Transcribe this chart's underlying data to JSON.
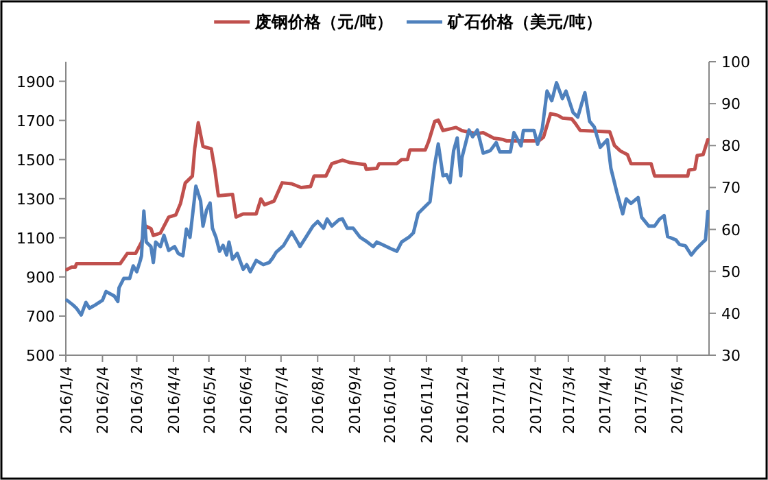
{
  "chart_data": {
    "type": "line",
    "legend": "top",
    "grid": false,
    "marker": "none",
    "line_style": "solid",
    "xlim": [
      "2016-01-04",
      "2017-07-01"
    ],
    "xticks": [
      {
        "value": "2016-01-04",
        "label": "2016/1/4"
      },
      {
        "value": "2016-02-04",
        "label": "2016/2/4"
      },
      {
        "value": "2016-03-04",
        "label": "2016/3/4"
      },
      {
        "value": "2016-04-04",
        "label": "2016/4/4"
      },
      {
        "value": "2016-05-04",
        "label": "2016/5/4"
      },
      {
        "value": "2016-06-04",
        "label": "2016/6/4"
      },
      {
        "value": "2016-07-04",
        "label": "2016/7/4"
      },
      {
        "value": "2016-08-04",
        "label": "2016/8/4"
      },
      {
        "value": "2016-09-04",
        "label": "2016/9/4"
      },
      {
        "value": "2016-10-04",
        "label": "2016/10/4"
      },
      {
        "value": "2016-11-04",
        "label": "2016/11/4"
      },
      {
        "value": "2016-12-04",
        "label": "2016/12/4"
      },
      {
        "value": "2017-01-04",
        "label": "2017/1/4"
      },
      {
        "value": "2017-02-04",
        "label": "2017/2/4"
      },
      {
        "value": "2017-03-04",
        "label": "2017/3/4"
      },
      {
        "value": "2017-04-04",
        "label": "2017/4/4"
      },
      {
        "value": "2017-05-04",
        "label": "2017/5/4"
      },
      {
        "value": "2017-06-04",
        "label": "2017/6/4"
      }
    ],
    "ylim": [
      500,
      2000
    ],
    "yticks": [
      500,
      700,
      900,
      1100,
      1300,
      1500,
      1700,
      1900
    ],
    "y2lim": [
      30,
      100
    ],
    "y2ticks": [
      30,
      40,
      50,
      60,
      70,
      80,
      90,
      100
    ],
    "series": [
      {
        "name": "废钢价格（元/吨）",
        "color": "#c0504d",
        "x": [
          "2016-01-05",
          "2016-01-09",
          "2016-01-12",
          "2016-01-13",
          "2016-02-19",
          "2016-02-25",
          "2016-03-03",
          "2016-03-08",
          "2016-03-12",
          "2016-03-16",
          "2016-03-18",
          "2016-03-24",
          "2016-03-27",
          "2016-03-31",
          "2016-04-06",
          "2016-04-10",
          "2016-04-14",
          "2016-04-20",
          "2016-04-22",
          "2016-04-25",
          "2016-04-29",
          "2016-05-06",
          "2016-05-09",
          "2016-05-12",
          "2016-05-24",
          "2016-05-27",
          "2016-06-02",
          "2016-06-13",
          "2016-06-17",
          "2016-06-20",
          "2016-06-28",
          "2016-07-05",
          "2016-07-13",
          "2016-07-21",
          "2016-07-29",
          "2016-08-01",
          "2016-08-11",
          "2016-08-16",
          "2016-08-25",
          "2016-08-31",
          "2016-09-13",
          "2016-09-14",
          "2016-09-23",
          "2016-09-25",
          "2016-10-10",
          "2016-10-14",
          "2016-10-19",
          "2016-10-21",
          "2016-11-03",
          "2016-11-06",
          "2016-11-11",
          "2016-11-14",
          "2016-11-18",
          "2016-11-29",
          "2016-12-04",
          "2016-12-16",
          "2016-12-22",
          "2016-12-31",
          "2017-01-08",
          "2017-01-11",
          "2017-02-07",
          "2017-02-11",
          "2017-02-17",
          "2017-02-23",
          "2017-02-27",
          "2017-03-07",
          "2017-03-10",
          "2017-03-14",
          "2017-04-08",
          "2017-04-12",
          "2017-04-17",
          "2017-04-23",
          "2017-04-26",
          "2017-05-13",
          "2017-05-16",
          "2017-06-13",
          "2017-06-14",
          "2017-06-19",
          "2017-06-21",
          "2017-06-26",
          "2017-06-30"
        ],
        "values": [
          938,
          950,
          950,
          968,
          968,
          1020,
          1020,
          1078,
          1159,
          1147,
          1112,
          1124,
          1159,
          1206,
          1217,
          1276,
          1380,
          1415,
          1555,
          1688,
          1567,
          1555,
          1450,
          1315,
          1322,
          1206,
          1222,
          1222,
          1299,
          1269,
          1287,
          1381,
          1376,
          1357,
          1362,
          1416,
          1416,
          1479,
          1497,
          1485,
          1474,
          1451,
          1455,
          1479,
          1479,
          1500,
          1500,
          1549,
          1549,
          1595,
          1695,
          1702,
          1648,
          1664,
          1648,
          1632,
          1637,
          1609,
          1602,
          1595,
          1595,
          1614,
          1735,
          1726,
          1712,
          1707,
          1684,
          1649,
          1642,
          1572,
          1544,
          1525,
          1479,
          1479,
          1416,
          1416,
          1446,
          1451,
          1521,
          1525,
          1602
        ]
      },
      {
        "name": "矿石价格（美元/吨）",
        "color": "#4f81bd",
        "axis": "y2",
        "x": [
          "2016-01-05",
          "2016-01-10",
          "2016-01-13",
          "2016-01-17",
          "2016-01-21",
          "2016-01-24",
          "2016-01-29",
          "2016-02-04",
          "2016-02-07",
          "2016-02-14",
          "2016-02-17",
          "2016-02-18",
          "2016-02-22",
          "2016-02-27",
          "2016-03-01",
          "2016-03-04",
          "2016-03-07",
          "2016-03-08",
          "2016-03-10",
          "2016-03-12",
          "2016-03-16",
          "2016-03-18",
          "2016-03-20",
          "2016-03-24",
          "2016-03-27",
          "2016-03-31",
          "2016-04-05",
          "2016-04-08",
          "2016-04-12",
          "2016-04-15",
          "2016-04-18",
          "2016-04-23",
          "2016-04-27",
          "2016-04-29",
          "2016-05-02",
          "2016-05-05",
          "2016-05-07",
          "2016-05-10",
          "2016-05-13",
          "2016-05-16",
          "2016-05-19",
          "2016-05-21",
          "2016-05-24",
          "2016-05-28",
          "2016-06-02",
          "2016-06-05",
          "2016-06-08",
          "2016-06-13",
          "2016-06-19",
          "2016-06-24",
          "2016-06-27",
          "2016-06-30",
          "2016-07-06",
          "2016-07-13",
          "2016-07-18",
          "2016-07-20",
          "2016-07-25",
          "2016-07-31",
          "2016-08-04",
          "2016-08-09",
          "2016-08-12",
          "2016-08-16",
          "2016-08-22",
          "2016-08-25",
          "2016-08-29",
          "2016-09-03",
          "2016-09-09",
          "2016-09-15",
          "2016-09-20",
          "2016-09-23",
          "2016-09-29",
          "2016-10-05",
          "2016-10-10",
          "2016-10-14",
          "2016-10-20",
          "2016-10-24",
          "2016-10-28",
          "2016-11-03",
          "2016-11-07",
          "2016-11-11",
          "2016-11-14",
          "2016-11-18",
          "2016-11-21",
          "2016-11-24",
          "2016-11-27",
          "2016-11-30",
          "2016-12-03",
          "2016-12-04",
          "2016-12-10",
          "2016-12-13",
          "2016-12-17",
          "2016-12-22",
          "2016-12-28",
          "2017-01-02",
          "2017-01-05",
          "2017-01-14",
          "2017-01-17",
          "2017-01-23",
          "2017-01-25",
          "2017-02-03",
          "2017-02-06",
          "2017-02-10",
          "2017-02-14",
          "2017-02-18",
          "2017-02-22",
          "2017-02-27",
          "2017-03-02",
          "2017-03-08",
          "2017-03-12",
          "2017-03-18",
          "2017-03-22",
          "2017-03-26",
          "2017-03-31",
          "2017-04-06",
          "2017-04-09",
          "2017-04-14",
          "2017-04-19",
          "2017-04-22",
          "2017-04-26",
          "2017-05-02",
          "2017-05-05",
          "2017-05-11",
          "2017-05-16",
          "2017-05-20",
          "2017-05-24",
          "2017-05-27",
          "2017-06-03",
          "2017-06-06",
          "2017-06-11",
          "2017-06-16",
          "2017-06-20",
          "2017-06-26",
          "2017-06-28",
          "2017-06-30"
        ],
        "values": [
          43.1,
          42.0,
          41.2,
          39.6,
          42.6,
          41.2,
          42.0,
          43.1,
          45.2,
          44.1,
          42.8,
          46.1,
          48.3,
          48.3,
          51.3,
          49.9,
          52.6,
          53.7,
          64.4,
          57.0,
          55.9,
          52.1,
          57.0,
          55.9,
          58.6,
          55.0,
          55.9,
          54.3,
          53.7,
          60.1,
          58.1,
          70.3,
          66.8,
          60.8,
          64.6,
          66.3,
          60.3,
          58.1,
          54.8,
          56.2,
          53.9,
          57.0,
          52.9,
          54.3,
          50.5,
          51.6,
          49.9,
          52.6,
          51.6,
          52.1,
          53.2,
          54.6,
          56.1,
          59.4,
          57.0,
          55.9,
          58.1,
          60.8,
          61.9,
          60.3,
          62.5,
          60.8,
          62.3,
          62.5,
          60.3,
          60.3,
          58.1,
          57.0,
          55.9,
          57.0,
          56.2,
          55.4,
          54.8,
          57.0,
          58.1,
          59.2,
          63.8,
          65.5,
          66.6,
          75.5,
          80.4,
          72.8,
          73.1,
          71.2,
          78.8,
          81.8,
          72.8,
          77.1,
          83.7,
          82.1,
          83.7,
          78.2,
          78.8,
          80.7,
          78.5,
          78.5,
          83.1,
          79.9,
          83.6,
          83.6,
          80.3,
          84.1,
          93.0,
          90.7,
          95.0,
          91.2,
          93.0,
          87.9,
          86.8,
          92.6,
          85.8,
          84.4,
          79.6,
          81.4,
          74.6,
          68.9,
          63.7,
          67.3,
          66.2,
          67.6,
          62.9,
          60.8,
          60.8,
          62.4,
          63.3,
          58.3,
          57.5,
          56.4,
          56.1,
          53.9,
          55.3,
          57.0,
          57.5,
          64.3
        ]
      }
    ]
  }
}
